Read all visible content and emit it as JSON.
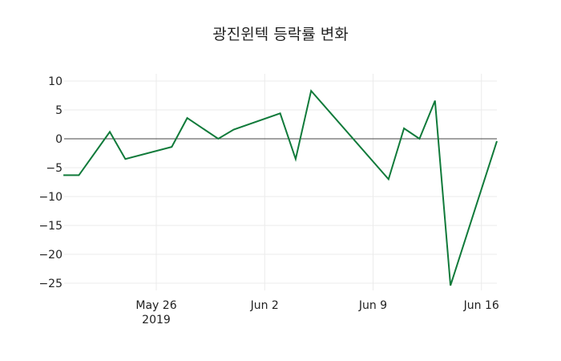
{
  "chart_data": {
    "type": "line",
    "title": "광진윈텍 등락률 변화",
    "xlabel": "",
    "ylabel": "",
    "ylim": [
      -27,
      10.5
    ],
    "y_ticks": [
      10,
      5,
      0,
      -5,
      -10,
      -15,
      -20,
      -25
    ],
    "x_ticks": [
      {
        "label": "May 26",
        "sub": "2019",
        "date": "2019-05-26"
      },
      {
        "label": "Jun 2",
        "sub": "",
        "date": "2019-06-02"
      },
      {
        "label": "Jun 9",
        "sub": "",
        "date": "2019-06-09"
      },
      {
        "label": "Jun 16",
        "sub": "",
        "date": "2019-06-16"
      }
    ],
    "grid": true,
    "line_color": "#107a3a",
    "series": [
      {
        "name": "등락률",
        "x": [
          "2019-05-20",
          "2019-05-21",
          "2019-05-23",
          "2019-05-24",
          "2019-05-27",
          "2019-05-28",
          "2019-05-30",
          "2019-05-31",
          "2019-06-03",
          "2019-06-04",
          "2019-06-05",
          "2019-06-10",
          "2019-06-11",
          "2019-06-12",
          "2019-06-13",
          "2019-06-14",
          "2019-06-17"
        ],
        "values": [
          -6.3,
          -6.3,
          1.2,
          -3.5,
          -1.4,
          3.6,
          0.0,
          1.6,
          4.4,
          -3.5,
          8.3,
          -7.0,
          1.8,
          0.0,
          6.6,
          -25.4,
          -0.4
        ]
      }
    ]
  }
}
